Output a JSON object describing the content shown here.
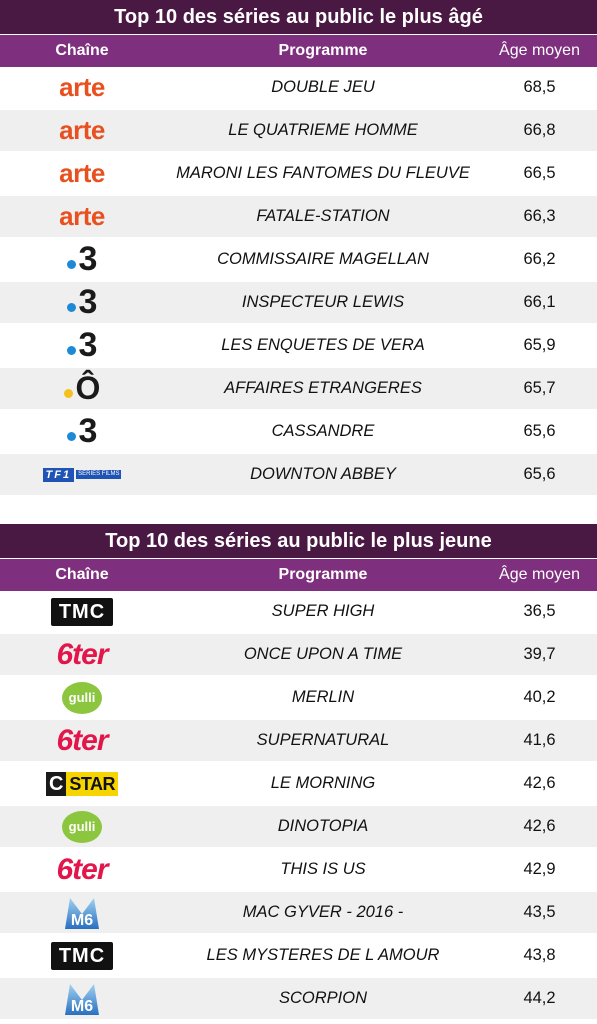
{
  "tables": [
    {
      "title": "Top 10 des séries au public le plus âgé",
      "headers": {
        "channel": "Chaîne",
        "program": "Programme",
        "age": "Âge moyen"
      },
      "rows": [
        {
          "channel": "arte",
          "logo": "arte-logo",
          "program": "DOUBLE JEU",
          "age": "68,5"
        },
        {
          "channel": "arte",
          "logo": "arte-logo",
          "program": "LE QUATRIEME HOMME",
          "age": "66,8"
        },
        {
          "channel": "arte",
          "logo": "arte-logo",
          "program": "MARONI LES FANTOMES DU FLEUVE",
          "age": "66,5"
        },
        {
          "channel": "arte",
          "logo": "arte-logo",
          "program": "FATALE-STATION",
          "age": "66,3"
        },
        {
          "channel": "3",
          "logo": "france3-logo",
          "program": "COMMISSAIRE MAGELLAN",
          "age": "66,2"
        },
        {
          "channel": "3",
          "logo": "france3-logo",
          "program": "INSPECTEUR LEWIS",
          "age": "66,1"
        },
        {
          "channel": "3",
          "logo": "france3-logo",
          "program": "LES ENQUETES DE VERA",
          "age": "65,9"
        },
        {
          "channel": "Ô",
          "logo": "franceo-logo",
          "program": "AFFAIRES ETRANGERES",
          "age": "65,7"
        },
        {
          "channel": "3",
          "logo": "france3-logo",
          "program": "CASSANDRE",
          "age": "65,6"
        },
        {
          "channel": "TF1",
          "logo": "tf1-series-films-logo",
          "sub": "SÉRIES FILMS",
          "program": "DOWNTON ABBEY",
          "age": "65,6"
        }
      ]
    },
    {
      "title": "Top 10 des séries au public le plus jeune",
      "headers": {
        "channel": "Chaîne",
        "program": "Programme",
        "age": "Âge moyen"
      },
      "rows": [
        {
          "channel": "TMC",
          "logo": "tmc-logo",
          "program": "SUPER HIGH",
          "age": "36,5"
        },
        {
          "channel": "6ter",
          "logo": "6ter-logo",
          "program": "ONCE UPON A TIME",
          "age": "39,7"
        },
        {
          "channel": "gulli",
          "logo": "gulli-logo",
          "program": "MERLIN",
          "age": "40,2"
        },
        {
          "channel": "6ter",
          "logo": "6ter-logo",
          "program": "SUPERNATURAL",
          "age": "41,6"
        },
        {
          "channel": "STAR",
          "logo": "cstar-logo",
          "program": "LE MORNING",
          "age": "42,6"
        },
        {
          "channel": "gulli",
          "logo": "gulli-logo",
          "program": "DINOTOPIA",
          "age": "42,6"
        },
        {
          "channel": "6ter",
          "logo": "6ter-logo",
          "program": "THIS IS US",
          "age": "42,9"
        },
        {
          "channel": "M6",
          "logo": "m6-logo",
          "program": "MAC GYVER - 2016 -",
          "age": "43,5"
        },
        {
          "channel": "TMC",
          "logo": "tmc-logo",
          "program": "LES MYSTERES DE L AMOUR",
          "age": "43,8"
        },
        {
          "channel": "M6",
          "logo": "m6-logo",
          "program": "SCORPION",
          "age": "44,2"
        }
      ]
    }
  ]
}
